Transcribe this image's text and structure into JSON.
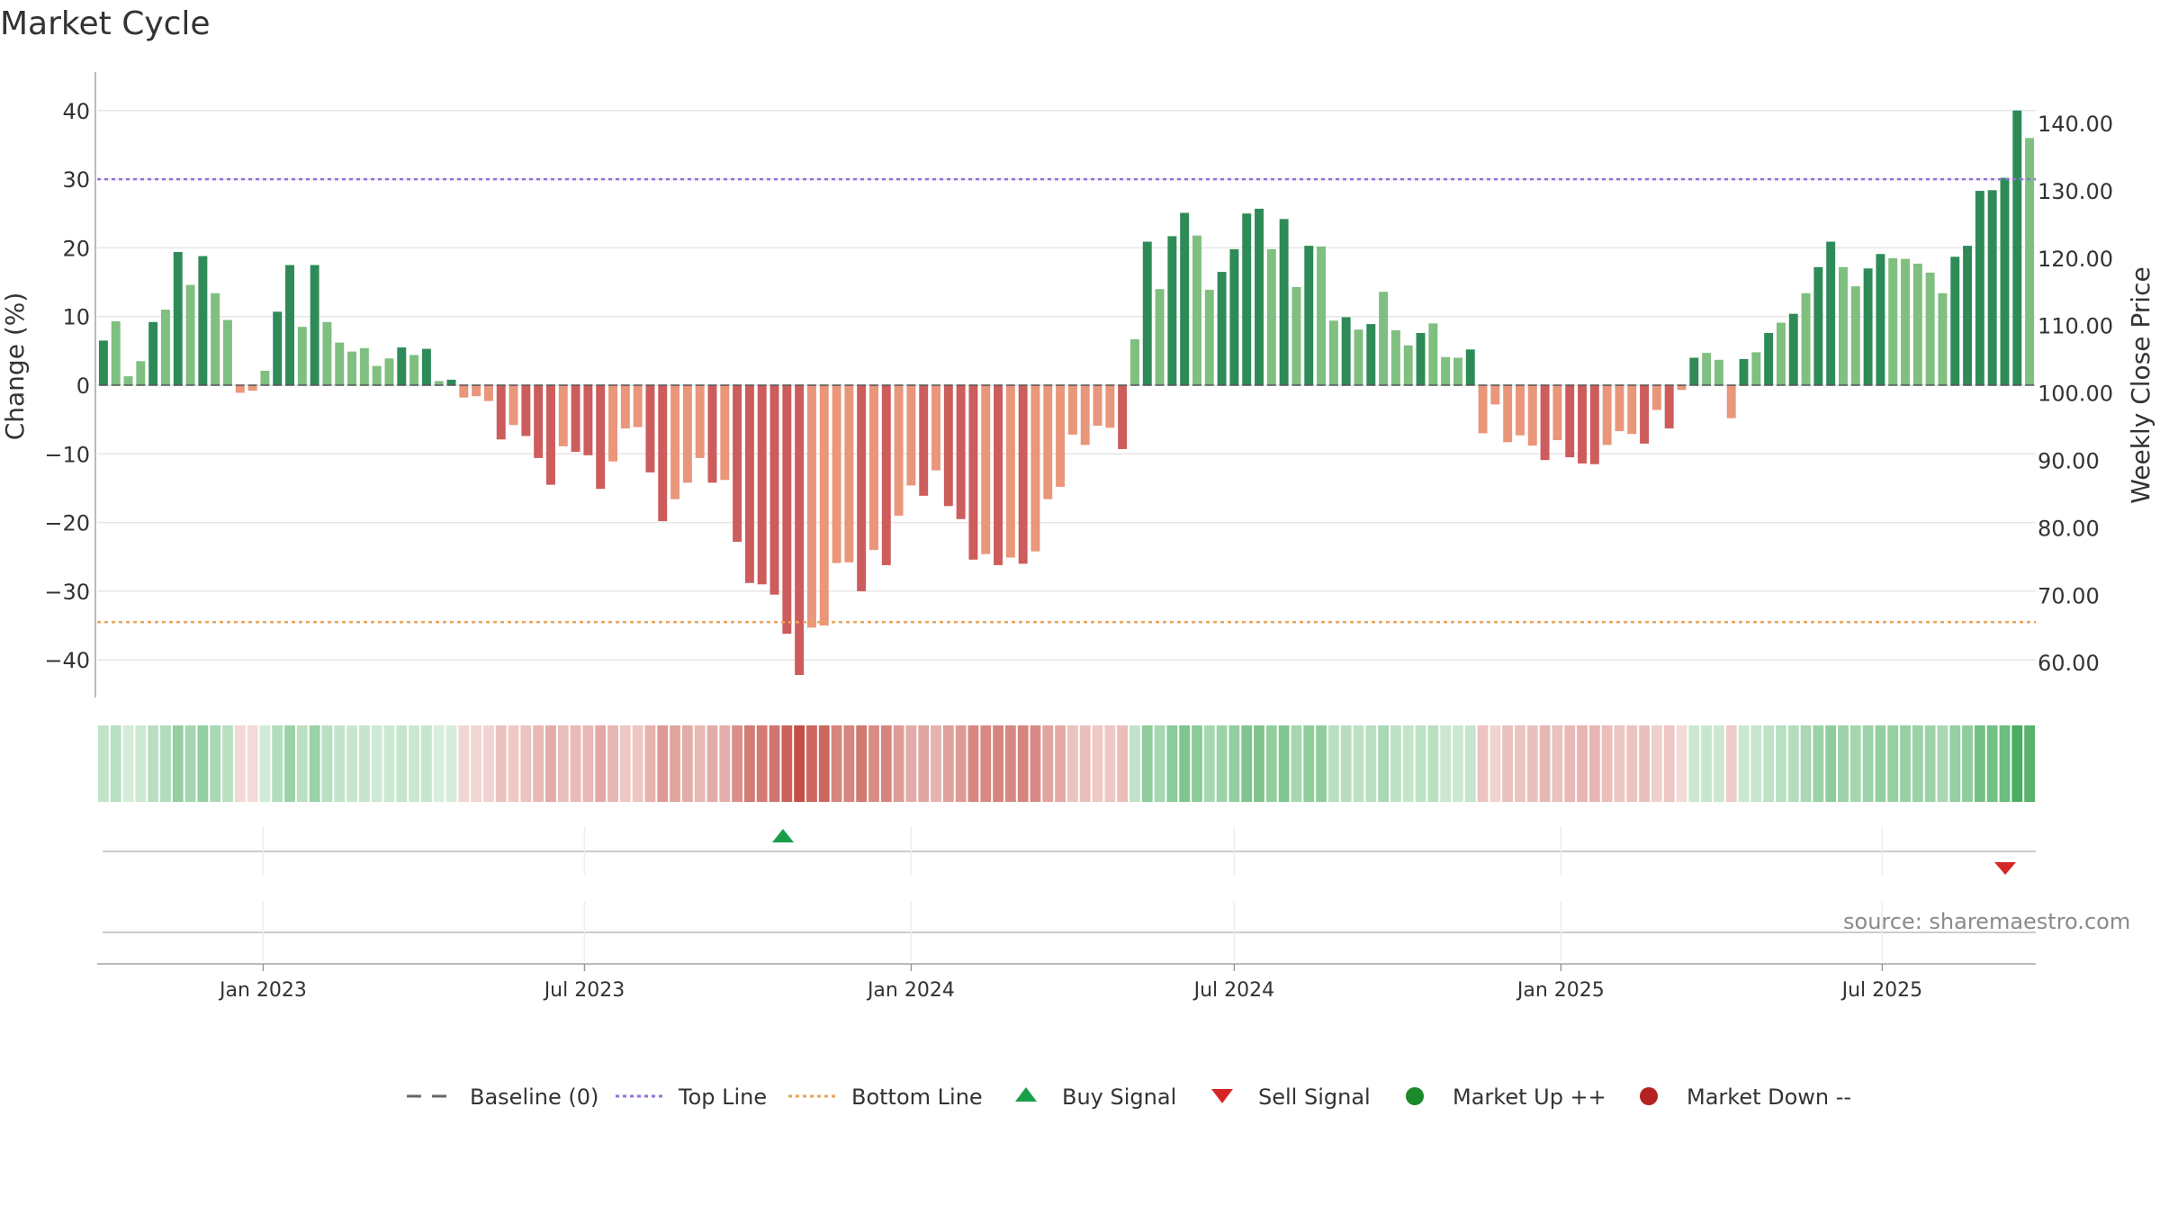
{
  "title": "Market Cycle",
  "source": "source: sharemaestro.com",
  "chart_data": {
    "type": "bar",
    "y_left_label": "Change (%)",
    "y_right_label": "Weekly Close Price",
    "y_left_ticks": [
      "40",
      "30",
      "20",
      "10",
      "0",
      "−10",
      "−20",
      "−30",
      "−40"
    ],
    "y_right_ticks": [
      "140.00",
      "130.00",
      "120.00",
      "110.00",
      "100.00",
      "90.00",
      "80.00",
      "70.00",
      "60.00"
    ],
    "ylim": [
      -46,
      46
    ],
    "x_tick_labels": [
      "Jan 2023",
      "Jul 2023",
      "Jan 2024",
      "Jul 2024",
      "Jan 2025",
      "Jul 2025"
    ],
    "top_line": 30,
    "bottom_line": -34.5,
    "start_week": "2022-10-03",
    "values": [
      6.5,
      9.3,
      1.3,
      3.5,
      9.2,
      11,
      19.4,
      14.6,
      18.8,
      13.4,
      9.5,
      -1.1,
      -0.8,
      2.1,
      10.7,
      17.5,
      8.5,
      17.5,
      9.2,
      6.2,
      4.9,
      5.4,
      2.8,
      3.9,
      5.5,
      4.4,
      5.3,
      0.6,
      0.8,
      -1.8,
      -1.6,
      -2.3,
      -7.9,
      -5.8,
      -7.4,
      -10.6,
      -14.5,
      -8.9,
      -9.7,
      -10.2,
      -15.1,
      -11.1,
      -6.3,
      -6.1,
      -12.7,
      -19.8,
      -16.6,
      -14.2,
      -10.6,
      -14.2,
      -13.8,
      -22.8,
      -28.8,
      -29,
      -30.5,
      -36.2,
      -42.2,
      -35.3,
      -35,
      -25.9,
      -25.8,
      -30,
      -24,
      -26.2,
      -19,
      -14.6,
      -16.1,
      -12.4,
      -17.6,
      -19.5,
      -25.4,
      -24.6,
      -26.2,
      -25.1,
      -26,
      -24.2,
      -16.6,
      -14.8,
      -7.2,
      -8.7,
      -5.9,
      -6.2,
      -9.3,
      6.7,
      20.9,
      14,
      21.7,
      25.1,
      21.8,
      13.9,
      16.5,
      19.8,
      25,
      25.7,
      19.8,
      24.2,
      14.3,
      20.3,
      20.2,
      9.4,
      9.9,
      8.1,
      8.9,
      13.6,
      8,
      5.8,
      7.6,
      9,
      4.1,
      4,
      5.2,
      -7,
      -2.8,
      -8.3,
      -7.3,
      -8.8,
      -10.9,
      -8,
      -10.5,
      -11.4,
      -11.5,
      -8.7,
      -6.7,
      -7.1,
      -8.5,
      -3.6,
      -6.3,
      -0.7,
      4,
      4.7,
      3.7,
      -4.8,
      3.8,
      4.8,
      7.6,
      9.1,
      10.4,
      13.4,
      17.2,
      20.9,
      17.2,
      14.4,
      17,
      19.1,
      18.5,
      18.4,
      17.7,
      16.4,
      13.4,
      18.7,
      20.3,
      28.3,
      28.4,
      30.2,
      40,
      36
    ]
  },
  "signals": {
    "buy_label": "▲",
    "sell_label": "▼"
  },
  "legend": [
    {
      "label": "Baseline (0)",
      "icon": "dash-line-icon"
    },
    {
      "label": "Top Line",
      "icon": "dotted-purple-line-icon"
    },
    {
      "label": "Bottom Line",
      "icon": "dotted-orange-line-icon"
    },
    {
      "label": "Buy Signal",
      "icon": "triangle-up-icon"
    },
    {
      "label": "Sell Signal",
      "icon": "triangle-down-icon"
    },
    {
      "label": "Market Up ++",
      "icon": "green-dot-icon"
    },
    {
      "label": "Market Down --",
      "icon": "red-dot-icon"
    }
  ],
  "colors": {
    "up_dark": "#2e8b57",
    "up_light": "#7fbf7f",
    "down_dark": "#cd5c5c",
    "down_light": "#e9967a",
    "top_line": "#9370db",
    "bottom_line": "#e9a35c",
    "buy": "#1a9e4a",
    "sell": "#d62728",
    "market_up": "#1a8a2a",
    "market_down": "#b22222"
  }
}
